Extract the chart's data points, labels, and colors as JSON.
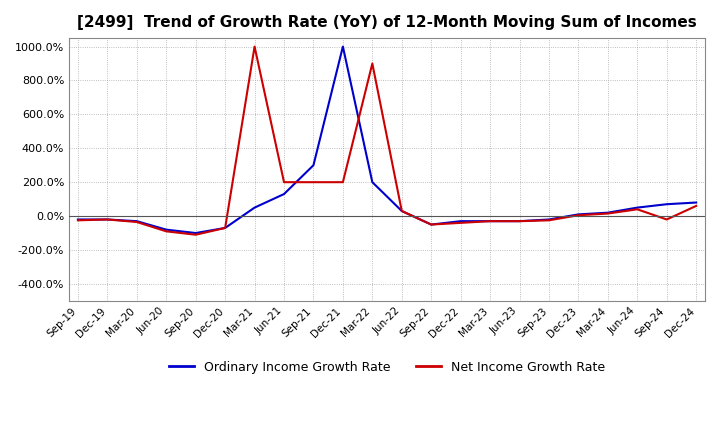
{
  "title": "[2499]  Trend of Growth Rate (YoY) of 12-Month Moving Sum of Incomes",
  "title_fontsize": 11,
  "ylim": [
    -500,
    1050
  ],
  "yticks": [
    -400,
    -200,
    0,
    200,
    400,
    600,
    800,
    1000
  ],
  "background_color": "#ffffff",
  "grid_color": "#aaaaaa",
  "legend_labels": [
    "Ordinary Income Growth Rate",
    "Net Income Growth Rate"
  ],
  "legend_colors": [
    "#0000cc",
    "#cc0000"
  ],
  "x_labels": [
    "Sep-19",
    "Dec-19",
    "Mar-20",
    "Jun-20",
    "Sep-20",
    "Dec-20",
    "Mar-21",
    "Jun-21",
    "Sep-21",
    "Dec-21",
    "Mar-22",
    "Jun-22",
    "Sep-22",
    "Dec-22",
    "Mar-23",
    "Jun-23",
    "Sep-23",
    "Dec-23",
    "Mar-24",
    "Jun-24",
    "Sep-24",
    "Dec-24"
  ],
  "ordinary_income": [
    -20,
    -20,
    -30,
    -80,
    -100,
    -70,
    50,
    130,
    300,
    1000,
    200,
    30,
    -50,
    -30,
    -30,
    -30,
    -20,
    10,
    20,
    50,
    70,
    80
  ],
  "net_income": [
    -25,
    -20,
    -35,
    -90,
    -110,
    -70,
    1000,
    200,
    200,
    200,
    900,
    30,
    -50,
    -40,
    -30,
    -30,
    -25,
    5,
    15,
    40,
    -20,
    60
  ]
}
